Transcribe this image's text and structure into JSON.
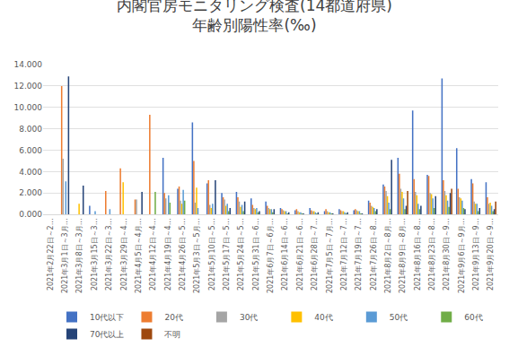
{
  "chart_data": {
    "type": "bar",
    "title": "内閣官房モニタリング検査(14都道府県)\n年齢別陽性率(‰)",
    "categories": [
      "2021年2月22日～2…",
      "2021年3月1日～3月…",
      "2021年3月8日～3月…",
      "2021年3月15日～3…",
      "2021年3月22日～3…",
      "2021年3月29日～4…",
      "2021年4月5日～4月…",
      "2021年4月12日～4…",
      "2021年4月19日～4…",
      "2021年4月26日～5…",
      "2021年5月3日～5月…",
      "2021年5月10日～5…",
      "2021年5月17日～5…",
      "2021年5月24日～5…",
      "2021年5月31日～6…",
      "2021年6月7日～6月…",
      "2021年6月14日～6…",
      "2021年6月21日～6…",
      "2021年6月28日～7…",
      "2021年7月5日～7月…",
      "2021年7月12日～7…",
      "2021年7月19日～7…",
      "2021年7月26日～8…",
      "2021年8月2日～8月…",
      "2021年8月9日～8月…",
      "2021年8月16日～8…",
      "2021年8月23日～8…",
      "2021年8月30日～9…",
      "2021年9月6日～9月…",
      "2021年9月13日～9…",
      "2021年9月20日～9…"
    ],
    "series": [
      {
        "name": "10代以下",
        "color": "#4472c4",
        "values": [
          0,
          0,
          0,
          0.8,
          0,
          0,
          0,
          0,
          5.3,
          2.4,
          8.6,
          2.9,
          2.0,
          2.1,
          1.5,
          1.2,
          0.6,
          0.4,
          0.6,
          0.3,
          0.5,
          0.4,
          1.3,
          2.8,
          5.3,
          9.7,
          3.7,
          12.7,
          6.2,
          3.3,
          3.0
        ]
      },
      {
        "name": "20代",
        "color": "#ed7d31",
        "values": [
          0,
          12.0,
          0,
          0,
          2.2,
          4.3,
          1.4,
          9.3,
          2.0,
          2.6,
          5.0,
          3.2,
          1.6,
          1.6,
          0.9,
          0.8,
          0.5,
          0.5,
          0.4,
          0.5,
          0.4,
          0.5,
          1.1,
          2.6,
          3.8,
          3.3,
          3.6,
          3.2,
          2.4,
          2.9,
          1.6
        ]
      },
      {
        "name": "30代",
        "color": "#a5a5a5",
        "values": [
          0,
          5.2,
          0,
          0,
          0,
          0,
          1.4,
          0,
          1.5,
          1.3,
          1.1,
          0.9,
          1.4,
          1.2,
          0.6,
          0.6,
          0.4,
          0.3,
          0.3,
          0.3,
          0.3,
          0.4,
          0.8,
          2.2,
          2.4,
          2.1,
          2.0,
          2.2,
          1.6,
          1.2,
          1.0
        ]
      },
      {
        "name": "40代",
        "color": "#ffc000",
        "values": [
          0,
          0,
          1.0,
          0,
          0,
          3.0,
          0,
          0,
          0,
          1.0,
          2.5,
          0.6,
          0.8,
          0.7,
          0.5,
          0.5,
          0.3,
          0.2,
          0.3,
          0.2,
          0.3,
          0.3,
          0.7,
          1.7,
          2.1,
          1.8,
          1.9,
          1.8,
          1.5,
          1.0,
          1.1
        ]
      },
      {
        "name": "50代",
        "color": "#5b9bd5",
        "values": [
          0,
          3.1,
          0,
          0.3,
          0.5,
          0,
          0,
          0,
          1.8,
          2.3,
          0.6,
          1.0,
          1.0,
          0.9,
          0.6,
          0.5,
          0.3,
          0.2,
          0.2,
          0.2,
          0.2,
          0.3,
          0.6,
          1.1,
          1.5,
          1.0,
          1.5,
          1.3,
          1.3,
          1.0,
          0.8
        ]
      },
      {
        "name": "60代",
        "color": "#70ad47",
        "values": [
          0,
          0,
          0,
          0,
          0,
          0,
          0,
          2.1,
          1.1,
          1.3,
          0,
          0,
          0.3,
          0.3,
          0.2,
          0.2,
          0.1,
          0.1,
          0.1,
          0.1,
          0.1,
          0.1,
          0.3,
          0.5,
          0.5,
          0.5,
          0.6,
          0.7,
          0.6,
          0.3,
          0.3
        ]
      },
      {
        "name": "70代以上",
        "color": "#264478",
        "values": [
          0,
          12.9,
          2.7,
          0,
          0,
          0,
          2.1,
          0,
          0,
          0,
          0,
          3.2,
          0.6,
          1.2,
          0.3,
          0.5,
          0.2,
          0.1,
          0.2,
          0.1,
          0.2,
          0.1,
          0.5,
          5.1,
          0.8,
          0.8,
          1.7,
          2.0,
          0.5,
          0.6,
          0.5
        ]
      },
      {
        "name": "不明",
        "color": "#9e480e",
        "values": [
          0,
          0,
          0,
          0,
          0,
          0,
          0,
          0,
          0,
          0,
          0,
          0,
          0,
          0,
          0,
          0,
          0,
          0,
          0,
          0,
          0,
          0,
          0,
          0,
          2.2,
          0,
          0,
          2.4,
          0,
          0,
          1.2
        ]
      }
    ],
    "ylim": [
      0,
      14
    ],
    "yticks": [
      {
        "value": 0,
        "label": "0.000"
      },
      {
        "value": 2,
        "label": "2.000"
      },
      {
        "value": 4,
        "label": "4.000"
      },
      {
        "value": 6,
        "label": "6.000"
      },
      {
        "value": 8,
        "label": "8.000"
      },
      {
        "value": 10,
        "label": "10.000"
      },
      {
        "value": 12,
        "label": "12.000"
      },
      {
        "value": 14,
        "label": "14.000"
      }
    ],
    "grid": true,
    "legend": "bottom"
  }
}
